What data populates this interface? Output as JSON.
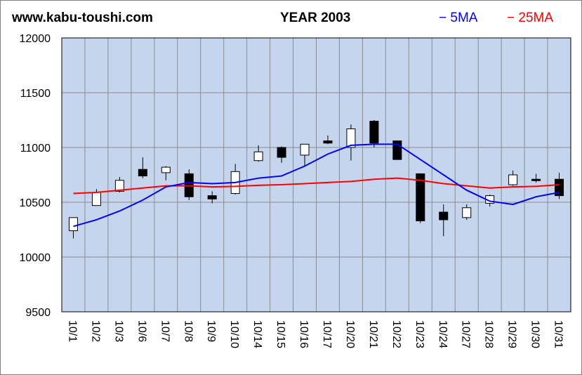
{
  "header": {
    "site": "www.kabu-toushi.com",
    "title": "YEAR 2003"
  },
  "legend": [
    {
      "label": "− 5MA",
      "color": "#0000ff"
    },
    {
      "label": "− 25MA",
      "color": "#ff0000"
    }
  ],
  "colors": {
    "plot_bg": "#c5d5ee",
    "grid": "#8c8c8c",
    "ma5": "#0000ff",
    "ma25": "#ff0000",
    "up_candle": "#ffffff",
    "down_candle": "#000000"
  },
  "chart_data": {
    "type": "candlestick",
    "title": "YEAR 2003",
    "ylim": [
      9500,
      12000
    ],
    "yticks": [
      "12000",
      "11500",
      "11000",
      "10500",
      "10000",
      "9500"
    ],
    "grid": true,
    "legend_position": "top-right",
    "categories": [
      "10/1",
      "10/2",
      "10/3",
      "10/6",
      "10/7",
      "10/8",
      "10/9",
      "10/10",
      "10/14",
      "10/15",
      "10/16",
      "10/17",
      "10/20",
      "10/21",
      "10/22",
      "10/23",
      "10/24",
      "10/27",
      "10/28",
      "10/29",
      "10/30",
      "10/31"
    ],
    "candles": [
      {
        "open": 10240,
        "high": 10360,
        "low": 10170,
        "close": 10360
      },
      {
        "open": 10470,
        "high": 10620,
        "low": 10470,
        "close": 10590
      },
      {
        "open": 10600,
        "high": 10730,
        "low": 10590,
        "close": 10700
      },
      {
        "open": 10800,
        "high": 10910,
        "low": 10720,
        "close": 10740
      },
      {
        "open": 10770,
        "high": 10830,
        "low": 10700,
        "close": 10820
      },
      {
        "open": 10760,
        "high": 10800,
        "low": 10520,
        "close": 10550
      },
      {
        "open": 10560,
        "high": 10600,
        "low": 10490,
        "close": 10530
      },
      {
        "open": 10580,
        "high": 10850,
        "low": 10570,
        "close": 10780
      },
      {
        "open": 10880,
        "high": 11020,
        "low": 10870,
        "close": 10960
      },
      {
        "open": 11000,
        "high": 11010,
        "low": 10860,
        "close": 10910
      },
      {
        "open": 10930,
        "high": 11030,
        "low": 10830,
        "close": 11030
      },
      {
        "open": 11060,
        "high": 11110,
        "low": 11030,
        "close": 11040
      },
      {
        "open": 11000,
        "high": 11210,
        "low": 10880,
        "close": 11170
      },
      {
        "open": 11240,
        "high": 11250,
        "low": 11000,
        "close": 11040
      },
      {
        "open": 11060,
        "high": 11060,
        "low": 10890,
        "close": 10890
      },
      {
        "open": 10760,
        "high": 10760,
        "low": 10310,
        "close": 10330
      },
      {
        "open": 10410,
        "high": 10480,
        "low": 10190,
        "close": 10340
      },
      {
        "open": 10360,
        "high": 10480,
        "low": 10340,
        "close": 10450
      },
      {
        "open": 10490,
        "high": 10570,
        "low": 10460,
        "close": 10560
      },
      {
        "open": 10660,
        "high": 10790,
        "low": 10650,
        "close": 10750
      },
      {
        "open": 10710,
        "high": 10760,
        "low": 10680,
        "close": 10700
      },
      {
        "open": 10710,
        "high": 10770,
        "low": 10530,
        "close": 10560
      }
    ],
    "series": [
      {
        "name": "5MA",
        "values": [
          10280,
          10340,
          10420,
          10520,
          10640,
          10680,
          10670,
          10680,
          10720,
          10740,
          10830,
          10940,
          11020,
          11030,
          11030,
          null,
          null,
          10610,
          10510,
          10480,
          10550,
          10590
        ]
      },
      {
        "name": "25MA",
        "values": [
          10580,
          10590,
          10610,
          10630,
          10650,
          10650,
          10640,
          10645,
          10655,
          10660,
          10670,
          10680,
          10690,
          10710,
          10720,
          10700,
          10670,
          10650,
          10630,
          10640,
          10645,
          10660
        ]
      }
    ]
  }
}
